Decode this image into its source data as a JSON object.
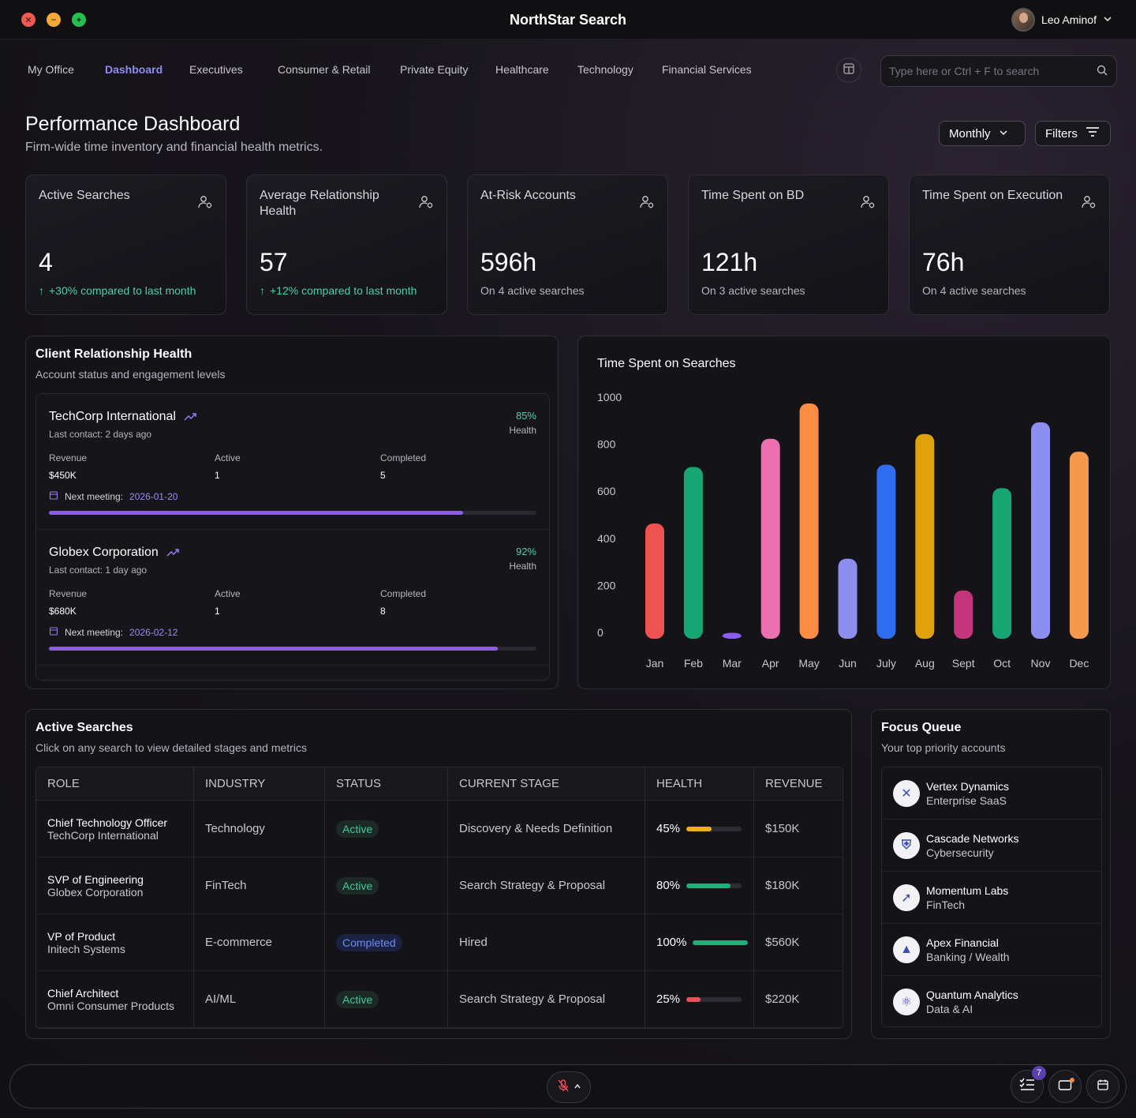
{
  "window": {
    "title": "NorthStar Search",
    "user_name": "Leo Aminof"
  },
  "nav": {
    "tabs": [
      "My Office",
      "Dashboard",
      "Executives",
      "Consumer & Retail",
      "Private Equity",
      "Healthcare",
      "Technology",
      "Financial Services"
    ],
    "active": "Dashboard",
    "search_placeholder": "Type here or Ctrl + F to search"
  },
  "header": {
    "title": "Performance Dashboard",
    "subtitle": "Firm-wide time inventory and financial health metrics.",
    "period_label": "Monthly",
    "filters_label": "Filters"
  },
  "stats": [
    {
      "label": "Active Searches",
      "value": "4",
      "note": "+30% compared to last month",
      "trend": "up"
    },
    {
      "label": "Average Relationship Health",
      "value": "57",
      "note": "+12% compared to last month",
      "trend": "up"
    },
    {
      "label": "At-Risk Accounts",
      "value": "596h",
      "note": "On 4 active searches",
      "trend": "none"
    },
    {
      "label": "Time Spent on BD",
      "value": "121h",
      "note": "On 3 active searches",
      "trend": "none"
    },
    {
      "label": "Time Spent on Execution",
      "value": "76h",
      "note": "On 4 active searches",
      "trend": "none"
    }
  ],
  "client_health": {
    "title": "Client Relationship Health",
    "subtitle": "Account status and engagement levels",
    "health_label": "Health",
    "revenue_label": "Revenue",
    "active_label": "Active",
    "completed_label": "Completed",
    "meeting_label": "Next meeting:",
    "clients": [
      {
        "name": "TechCorp International",
        "last_contact": "Last contact: 2 days ago",
        "health": "85%",
        "health_value": 0.85,
        "revenue": "$450K",
        "active": "1",
        "completed": "5",
        "next_meeting": "2026-01-20"
      },
      {
        "name": "Globex Corporation",
        "last_contact": "Last contact: 1 day ago",
        "health": "92%",
        "health_value": 0.92,
        "revenue": "$680K",
        "active": "1",
        "completed": "8",
        "next_meeting": "2026-02-12"
      }
    ]
  },
  "chart_data": {
    "type": "bar",
    "title": "Time Spent on Searches",
    "categories": [
      "Jan",
      "Feb",
      "Mar",
      "Apr",
      "May",
      "Jun",
      "July",
      "Aug",
      "Sept",
      "Oct",
      "Nov",
      "Dec"
    ],
    "values": [
      490,
      730,
      25,
      850,
      1000,
      340,
      740,
      870,
      205,
      640,
      920,
      795
    ],
    "colors": [
      "#ef5350",
      "#17a673",
      "#8b5cf6",
      "#ec6fb0",
      "#fb8c44",
      "#8d8ff0",
      "#2f6df0",
      "#e0a20c",
      "#c2357c",
      "#17a673",
      "#8d8ff0",
      "#f59a4c"
    ],
    "yticks": [
      "0",
      "200",
      "400",
      "600",
      "800",
      "1000"
    ],
    "ylim": [
      0,
      1000
    ],
    "grid": false
  },
  "active_searches": {
    "title": "Active Searches",
    "subtitle": "Click on any search to view detailed stages and metrics",
    "columns": [
      "ROLE",
      "INDUSTRY",
      "STATUS",
      "CURRENT STAGE",
      "HEALTH",
      "REVENUE"
    ],
    "rows": [
      {
        "role": "Chief Technology Officer",
        "company": "TechCorp International",
        "industry": "Technology",
        "status": "Active",
        "stage": "Discovery & Needs Definition",
        "health": "45%",
        "health_value": 0.45,
        "health_color": "#f0b020",
        "revenue": "$150K"
      },
      {
        "role": "SVP of Engineering",
        "company": "Globex Corporation",
        "industry": "FinTech",
        "status": "Active",
        "stage": "Search Strategy & Proposal",
        "health": "80%",
        "health_value": 0.8,
        "health_color": "#1fb07a",
        "revenue": "$180K"
      },
      {
        "role": "VP of Product",
        "company": "Initech Systems",
        "industry": "E-commerce",
        "status": "Completed",
        "stage": "Hired",
        "health": "100%",
        "health_value": 1.0,
        "health_color": "#1fb07a",
        "revenue": "$560K"
      },
      {
        "role": "Chief Architect",
        "company": "Omni Consumer Products",
        "industry": "AI/ML",
        "status": "Active",
        "stage": "Search Strategy & Proposal",
        "health": "25%",
        "health_value": 0.25,
        "health_color": "#ef4f5a",
        "revenue": "$220K"
      }
    ]
  },
  "focus_queue": {
    "title": "Focus Queue",
    "subtitle": "Your top priority accounts",
    "items": [
      {
        "name": "Vertex Dynamics",
        "industry": "Enterprise SaaS",
        "logo": "vertex-logo"
      },
      {
        "name": "Cascade Networks",
        "industry": "Cybersecurity",
        "logo": "shield-logo"
      },
      {
        "name": "Momentum Labs",
        "industry": "FinTech",
        "logo": "momentum-logo"
      },
      {
        "name": "Apex Financial",
        "industry": "Banking / Wealth",
        "logo": "mountain-logo"
      },
      {
        "name": "Quantum Analytics",
        "industry": "Data & AI",
        "logo": "atom-logo"
      }
    ]
  },
  "bottom_bar": {
    "task_count": "7"
  }
}
